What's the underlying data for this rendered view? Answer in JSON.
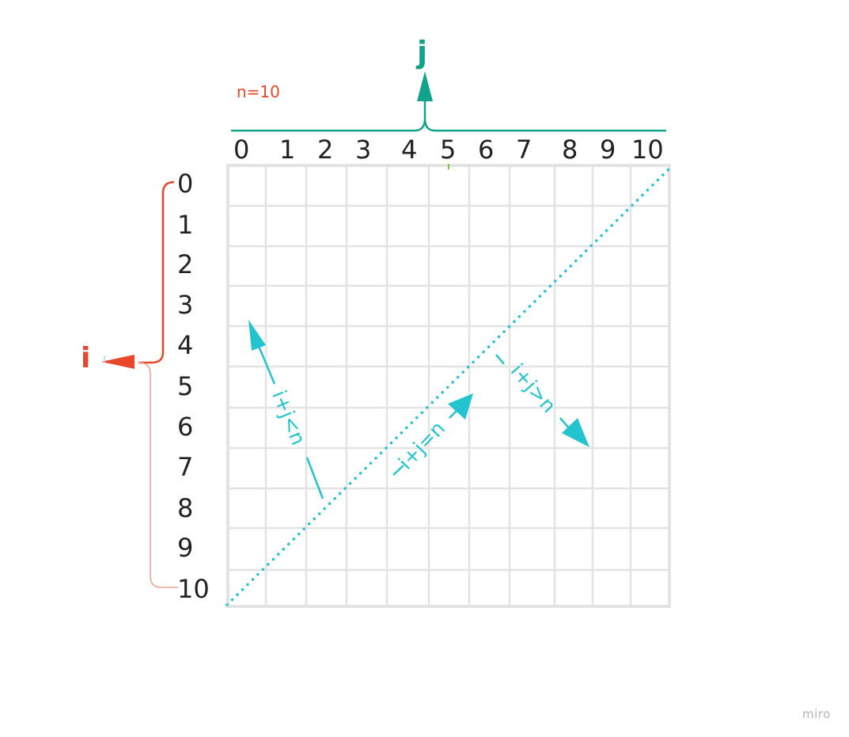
{
  "n_label": "n=10",
  "j_axis": {
    "label": "j",
    "ticks": [
      "0",
      "1",
      "2",
      "3",
      "4",
      "5",
      "6",
      "7",
      "8",
      "9",
      "10"
    ]
  },
  "i_axis": {
    "label": "i",
    "ticks": [
      "0",
      "1",
      "2",
      "3",
      "4",
      "5",
      "6",
      "7",
      "8",
      "9",
      "10"
    ]
  },
  "regions": {
    "below": "i+j<n",
    "equal": "i+j=n",
    "above": "i+j>n"
  },
  "watermark": "miro",
  "colors": {
    "j_axis": "#12a38b",
    "i_axis": "#e8472c",
    "diagonal": "#23c4cf",
    "grid": "#e3e3e3",
    "text": "#222222"
  }
}
